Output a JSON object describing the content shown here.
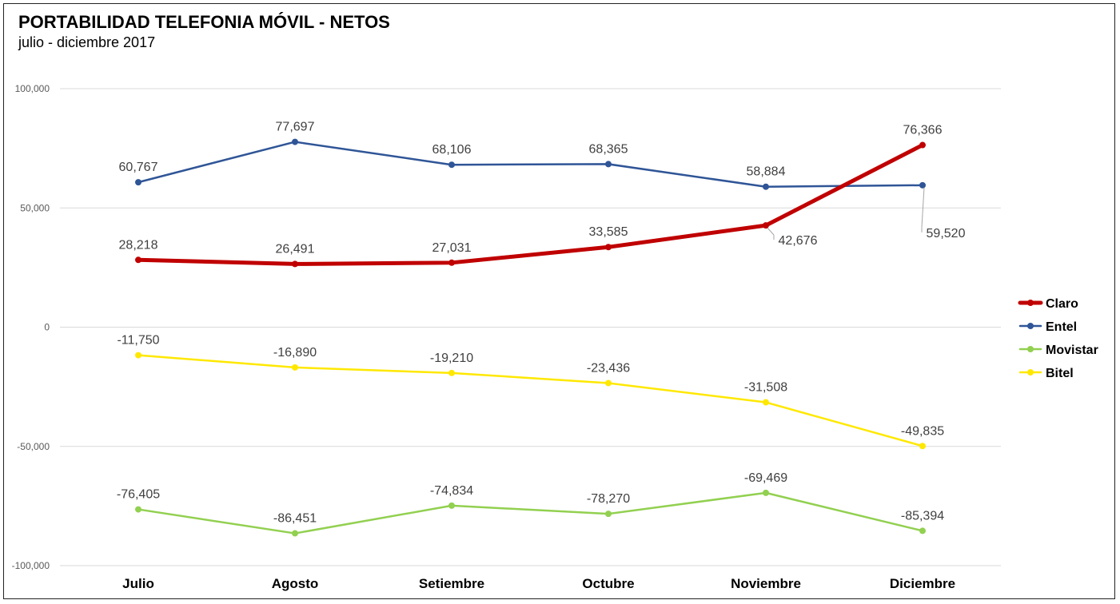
{
  "chart_data": {
    "type": "line",
    "title": "PORTABILIDAD TELEFONIA MÓVIL - NETOS",
    "subtitle": "julio - diciembre 2017",
    "xlabel": "",
    "ylabel": "",
    "categories": [
      "Julio",
      "Agosto",
      "Setiembre",
      "Octubre",
      "Noviembre",
      "Diciembre"
    ],
    "ylim": [
      -100000,
      100000
    ],
    "yticks": [
      100000,
      50000,
      0,
      -50000,
      -100000
    ],
    "ytick_labels": [
      "100,000",
      "50,000",
      "0",
      "-50,000",
      "-100,000"
    ],
    "grid": true,
    "legend_position": "right",
    "series": [
      {
        "name": "Claro",
        "color": "#C00000",
        "thick": true,
        "values": [
          28218,
          26491,
          27031,
          33585,
          42676,
          76366
        ],
        "labels": [
          "28,218",
          "26,491",
          "27,031",
          "33,585",
          "42,676",
          "76,366"
        ]
      },
      {
        "name": "Entel",
        "color": "#2F5597",
        "thick": false,
        "values": [
          60767,
          77697,
          68106,
          68365,
          58884,
          59520
        ],
        "labels": [
          "60,767",
          "77,697",
          "68,106",
          "68,365",
          "58,884",
          "59,520"
        ]
      },
      {
        "name": "Movistar",
        "color": "#92D050",
        "thick": false,
        "values": [
          -76405,
          -86451,
          -74834,
          -78270,
          -69469,
          -85394
        ],
        "labels": [
          "-76,405",
          "-86,451",
          "-74,834",
          "-78,270",
          "-69,469",
          "-85,394"
        ]
      },
      {
        "name": "Bitel",
        "color": "#FFE800",
        "thick": false,
        "values": [
          -11750,
          -16890,
          -19210,
          -23436,
          -31508,
          -49835
        ],
        "labels": [
          "-11,750",
          "-16,890",
          "-19,210",
          "-23,436",
          "-31,508",
          "-49,835"
        ]
      }
    ]
  }
}
